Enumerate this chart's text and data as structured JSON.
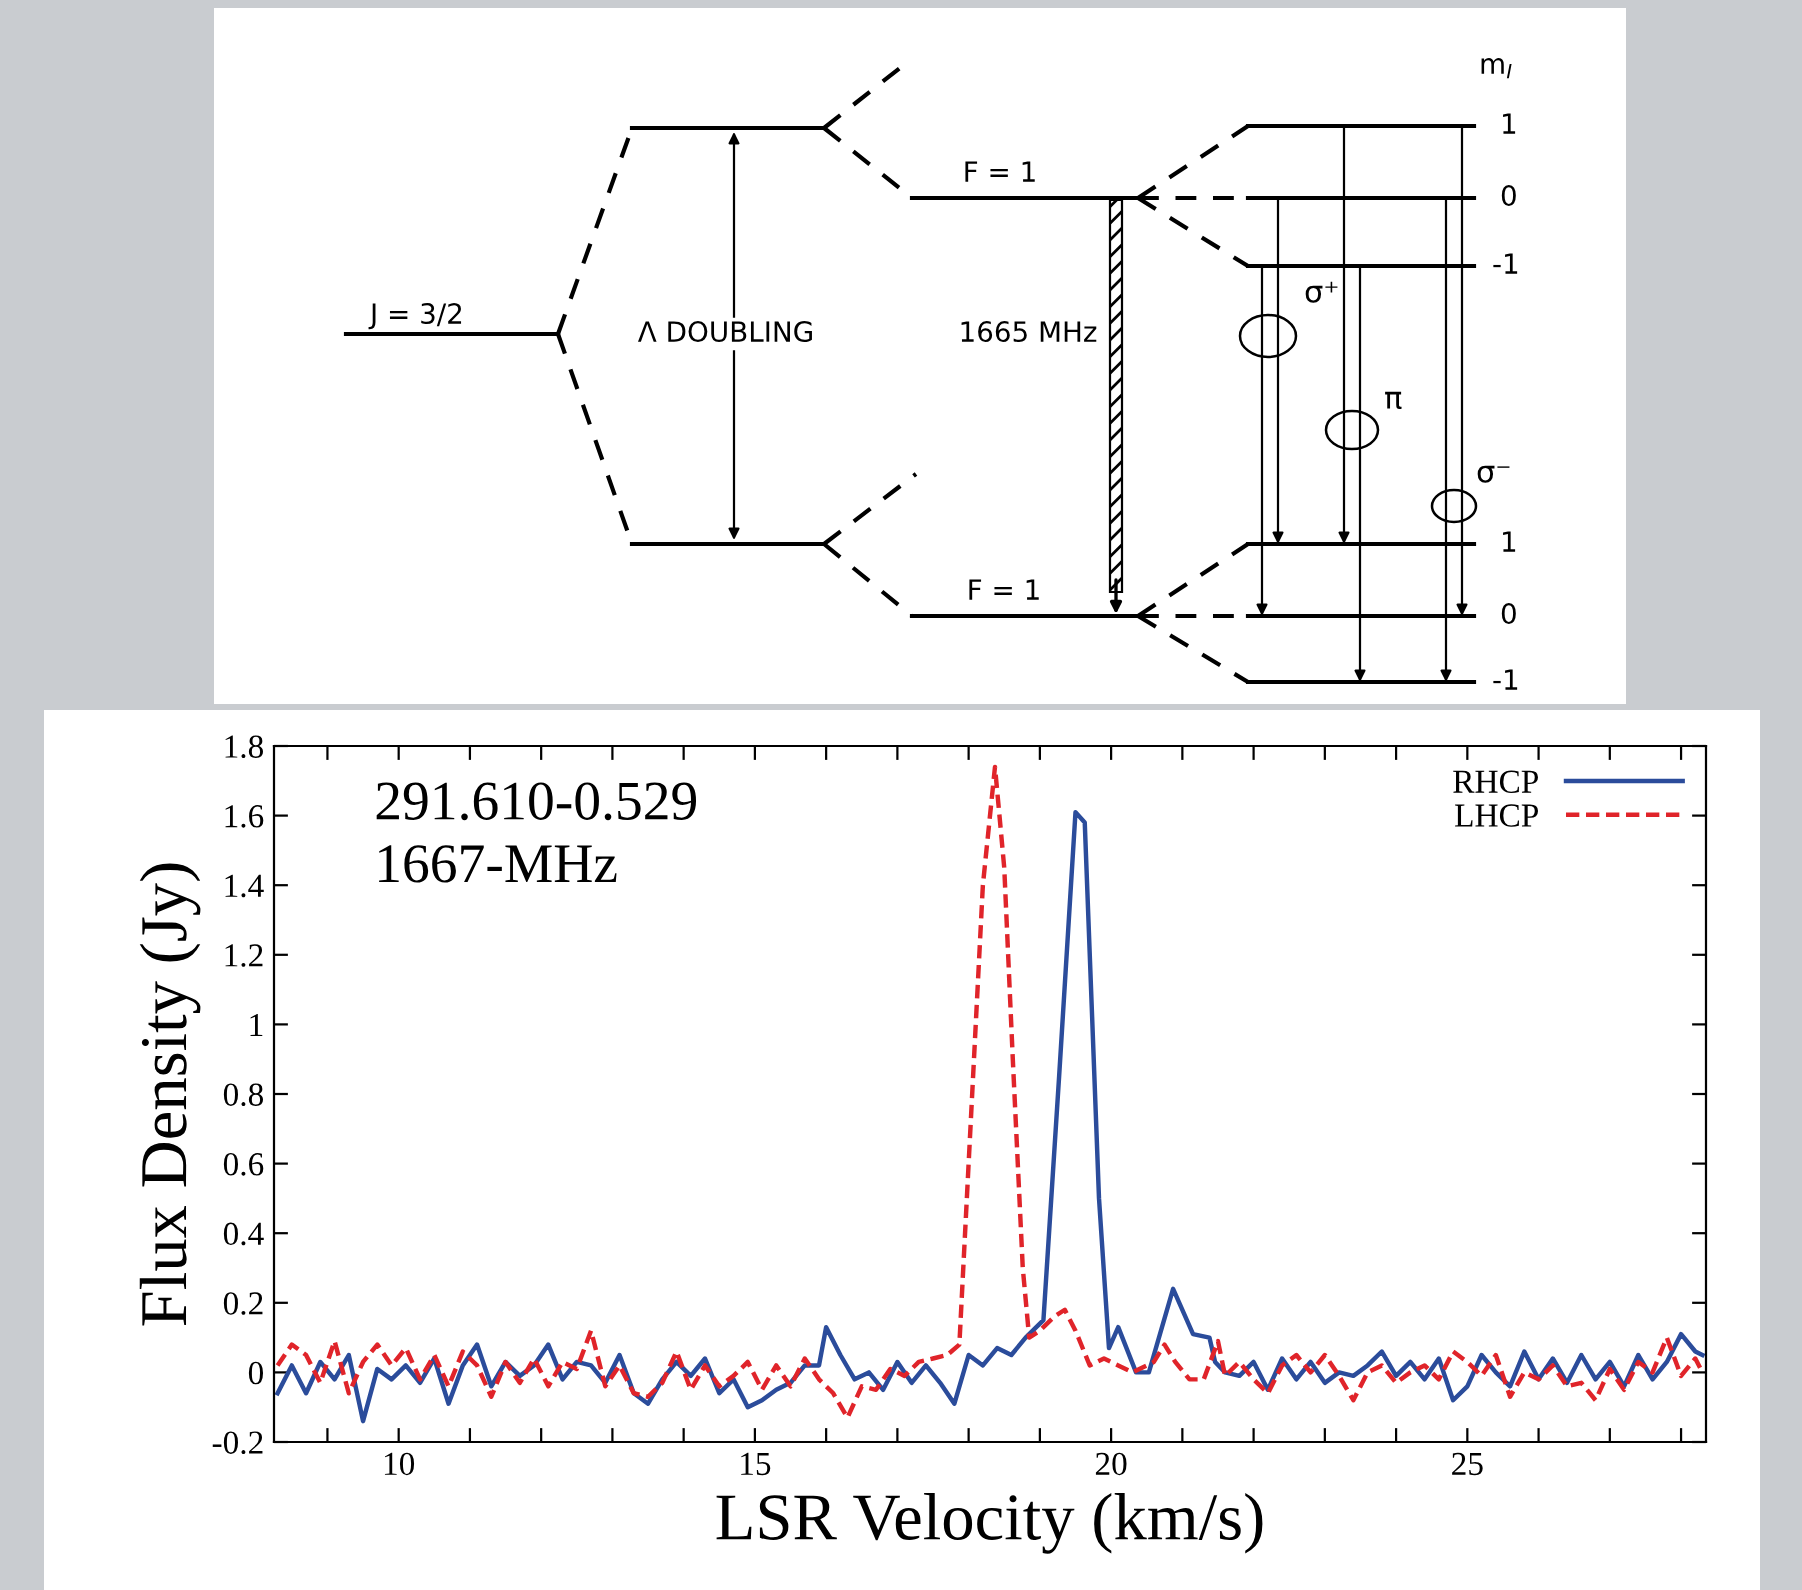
{
  "chart_data": [
    {
      "type": "other",
      "annotations": [
        "J = 3/2",
        "Λ DOUBLING",
        "F = 1",
        "1665 MHz",
        "F = 1",
        "m$_{I}$",
        "1",
        "0",
        "-1",
        "1",
        "0",
        "-1",
        "σ⁺",
        "π",
        "σ⁻"
      ]
    },
    {
      "type": "line",
      "xlabel": "LSR Velocity (km/s)",
      "ylabel": "Flux Density (Jy)",
      "annotations": [
        "291.610-0.529",
        "1667-MHz"
      ],
      "xlim": [
        8.25,
        28.35
      ],
      "ylim": [
        -0.2,
        1.8
      ],
      "xticks": [
        {
          "value": 9,
          "label": null
        },
        10,
        {
          "value": 11,
          "label": null
        },
        {
          "value": 12,
          "label": null
        },
        {
          "value": 13,
          "label": null
        },
        {
          "value": 14,
          "label": null
        },
        15,
        {
          "value": 16,
          "label": null
        },
        {
          "value": 17,
          "label": null
        },
        {
          "value": 18,
          "label": null
        },
        {
          "value": 19,
          "label": null
        },
        20,
        {
          "value": 21,
          "label": null
        },
        {
          "value": 22,
          "label": null
        },
        {
          "value": 23,
          "label": null
        },
        {
          "value": 24,
          "label": null
        },
        25,
        {
          "value": 26,
          "label": null
        },
        {
          "value": 27,
          "label": null
        },
        {
          "value": 28,
          "label": null
        }
      ],
      "yticks": [
        {
          "value": -0.2,
          "label": "-0.2"
        },
        0,
        0.2,
        0.4,
        0.6,
        0.8,
        1,
        1.2,
        1.4,
        1.6,
        1.8
      ],
      "grid": false,
      "legend": "top right",
      "series": [
        {
          "name": "RHCP",
          "color": "#2b4c9b",
          "line_style": "solid",
          "x": [
            8.3,
            8.5,
            8.7,
            8.9,
            9.1,
            9.3,
            9.5,
            9.7,
            9.9,
            10.1,
            10.3,
            10.5,
            10.7,
            10.9,
            11.1,
            11.3,
            11.5,
            11.7,
            11.9,
            12.1,
            12.3,
            12.5,
            12.7,
            12.9,
            13.1,
            13.3,
            13.5,
            13.7,
            13.9,
            14.1,
            14.3,
            14.5,
            14.7,
            14.9,
            15.1,
            15.3,
            15.5,
            15.7,
            15.9,
            16.0,
            16.2,
            16.4,
            16.6,
            16.8,
            17.0,
            17.2,
            17.4,
            17.6,
            17.8,
            18.0,
            18.2,
            18.4,
            18.6,
            18.8,
            19.05,
            19.27,
            19.5,
            19.63,
            19.83,
            19.97,
            20.1,
            20.35,
            20.53,
            20.87,
            21.15,
            21.38,
            21.46,
            21.6,
            21.8,
            22.0,
            22.2,
            22.4,
            22.6,
            22.8,
            23.0,
            23.2,
            23.4,
            23.6,
            23.8,
            24.0,
            24.2,
            24.4,
            24.6,
            24.8,
            25.0,
            25.2,
            25.4,
            25.6,
            25.8,
            26.0,
            26.2,
            26.4,
            26.6,
            26.8,
            27.0,
            27.2,
            27.4,
            27.6,
            27.8,
            28.0,
            28.2,
            28.3
          ],
          "values": [
            -0.06,
            0.02,
            -0.06,
            0.03,
            -0.02,
            0.05,
            -0.14,
            0.01,
            -0.02,
            0.02,
            -0.03,
            0.04,
            -0.09,
            0.02,
            0.08,
            -0.04,
            0.03,
            -0.01,
            0.02,
            0.08,
            -0.02,
            0.03,
            0.02,
            -0.03,
            0.05,
            -0.06,
            -0.09,
            -0.02,
            0.03,
            -0.01,
            0.04,
            -0.06,
            -0.02,
            -0.1,
            -0.08,
            -0.05,
            -0.03,
            0.02,
            0.02,
            0.13,
            0.05,
            -0.02,
            0.0,
            -0.05,
            0.03,
            -0.03,
            0.02,
            -0.03,
            -0.09,
            0.05,
            0.02,
            0.07,
            0.05,
            0.1,
            0.15,
            0.85,
            1.61,
            1.58,
            0.5,
            0.07,
            0.13,
            0.0,
            0.0,
            0.24,
            0.11,
            0.1,
            0.03,
            0.0,
            -0.01,
            0.03,
            -0.05,
            0.04,
            -0.02,
            0.03,
            -0.03,
            0.0,
            -0.01,
            0.02,
            0.06,
            -0.01,
            0.03,
            -0.02,
            0.04,
            -0.08,
            -0.04,
            0.05,
            0.0,
            -0.04,
            0.06,
            -0.02,
            0.04,
            -0.03,
            0.05,
            -0.02,
            0.03,
            -0.04,
            0.05,
            -0.02,
            0.03,
            0.11,
            0.06,
            0.05
          ]
        },
        {
          "name": "LHCP",
          "color": "#e0242a",
          "line_style": "dashed",
          "x": [
            8.3,
            8.5,
            8.7,
            8.9,
            9.1,
            9.3,
            9.5,
            9.7,
            9.9,
            10.1,
            10.3,
            10.5,
            10.7,
            10.9,
            11.1,
            11.3,
            11.5,
            11.7,
            11.9,
            12.1,
            12.3,
            12.5,
            12.7,
            12.9,
            13.1,
            13.3,
            13.5,
            13.7,
            13.9,
            14.1,
            14.3,
            14.5,
            14.7,
            14.9,
            15.1,
            15.3,
            15.5,
            15.7,
            15.9,
            16.1,
            16.3,
            16.5,
            16.7,
            16.9,
            17.1,
            17.3,
            17.5,
            17.7,
            17.87,
            18.0,
            18.2,
            18.37,
            18.5,
            18.62,
            18.76,
            18.85,
            19.0,
            19.2,
            19.35,
            19.5,
            19.7,
            19.9,
            20.1,
            20.3,
            20.6,
            20.75,
            20.9,
            21.1,
            21.3,
            21.5,
            21.6,
            21.8,
            22.0,
            22.2,
            22.4,
            22.6,
            22.8,
            23.0,
            23.2,
            23.4,
            23.6,
            23.8,
            24.0,
            24.2,
            24.4,
            24.6,
            24.8,
            25.0,
            25.2,
            25.4,
            25.6,
            25.8,
            26.0,
            26.2,
            26.4,
            26.6,
            26.8,
            27.0,
            27.2,
            27.4,
            27.6,
            27.8,
            28.0,
            28.2,
            28.3
          ],
          "values": [
            0.02,
            0.08,
            0.05,
            -0.03,
            0.09,
            -0.06,
            0.03,
            0.08,
            0.02,
            0.07,
            -0.02,
            0.05,
            -0.04,
            0.06,
            0.02,
            -0.07,
            0.03,
            -0.03,
            0.04,
            -0.04,
            0.03,
            0.01,
            0.12,
            -0.04,
            0.02,
            -0.06,
            -0.07,
            -0.03,
            0.06,
            -0.05,
            0.02,
            -0.04,
            -0.01,
            0.03,
            -0.05,
            0.02,
            -0.04,
            0.04,
            -0.02,
            -0.06,
            -0.13,
            -0.04,
            -0.05,
            0.01,
            -0.01,
            0.03,
            0.04,
            0.05,
            0.08,
            0.6,
            1.4,
            1.74,
            1.45,
            0.9,
            0.3,
            0.1,
            0.12,
            0.16,
            0.18,
            0.12,
            0.02,
            0.04,
            0.02,
            0.0,
            0.03,
            0.08,
            0.03,
            -0.02,
            -0.02,
            0.09,
            -0.01,
            0.03,
            -0.02,
            -0.06,
            0.02,
            0.05,
            0.0,
            0.05,
            -0.01,
            -0.08,
            0.0,
            0.02,
            -0.03,
            0.0,
            0.02,
            -0.02,
            0.06,
            0.03,
            -0.01,
            0.05,
            -0.07,
            0.0,
            -0.02,
            0.02,
            -0.04,
            -0.03,
            -0.08,
            0.01,
            -0.05,
            0.03,
            0.0,
            0.1,
            -0.01,
            0.04,
            0.0
          ]
        }
      ]
    }
  ]
}
